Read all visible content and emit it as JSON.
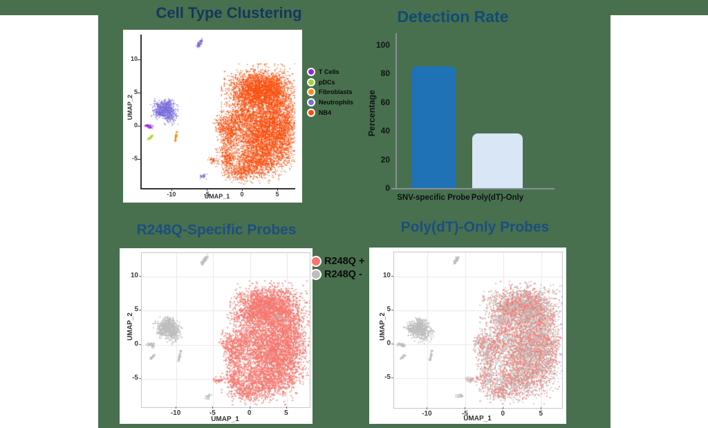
{
  "page": {
    "bg_green": "#48704E",
    "bg_white": "#FFFFFF"
  },
  "titles": {
    "cell_type": {
      "text": "Cell Type Clustering",
      "color": "#16375D"
    },
    "detection": {
      "text": "Detection Rate",
      "color": "#134A74"
    },
    "r248q": {
      "text": "R248Q-Specific Probes",
      "color": "#1C4E80"
    },
    "polydt": {
      "text": "Poly(dT)-Only Probes",
      "color": "#1C4E80"
    }
  },
  "chart_data": [
    {
      "id": "cell_type_umap",
      "type": "scatter",
      "title": "Cell Type Clustering",
      "xlabel": "UMAP_1",
      "ylabel": "UMAP_2",
      "xlim": [
        -14.4,
        7.35
      ],
      "ylim": [
        -9.4,
        13.75
      ],
      "xticks": [
        -10,
        -5,
        0,
        5
      ],
      "yticks": [
        10,
        5,
        0,
        -5
      ],
      "grid": false,
      "point_size": 1.3,
      "density": 1.6,
      "legend": [
        {
          "label": "T Cells",
          "color": "#9128D8"
        },
        {
          "label": "pDCs",
          "color": "#9FD62B"
        },
        {
          "label": "Fibroblasts",
          "color": "#FB8A10"
        },
        {
          "label": "Neutrophils",
          "color": "#7A6ED9"
        },
        {
          "label": "NB4",
          "color": "#FA4E0D"
        }
      ],
      "groups": [
        {
          "geom": "main_blob",
          "color": "#FA4E0D"
        },
        {
          "geom": "nb4_spot",
          "color": "#FA4E0D"
        },
        {
          "geom": "neutrophil_cluster",
          "color": "#7A6ED9"
        },
        {
          "geom": "neutrophil_streak",
          "color": "#7A6ED9"
        },
        {
          "geom": "neutrophil_dots",
          "color": "#7A6ED9"
        },
        {
          "geom": "tcell_cluster",
          "color": "#9128D8"
        },
        {
          "geom": "pdc_streak",
          "color": "#9FD62B"
        },
        {
          "geom": "fibro_streak",
          "color": "#FB8A10"
        },
        {
          "geom": "fibro_dot",
          "color": "#FB8A10"
        }
      ]
    },
    {
      "id": "detection_rate",
      "type": "bar",
      "title": "Detection Rate",
      "categories": [
        "SNV-specific Probe",
        "Poly(dT)-Only"
      ],
      "values": [
        85,
        38
      ],
      "bar_colors": [
        "#1F72B5",
        "#D9E6F5"
      ],
      "ylabel": "Percentage",
      "ylim": [
        0,
        100
      ],
      "yticks": [
        0,
        20,
        40,
        60,
        80,
        100
      ],
      "axis_color": "#8A9097"
    },
    {
      "id": "r248q_umap",
      "type": "scatter",
      "title": "R248Q-Specific Probes",
      "xlabel": "UMAP_1",
      "ylabel": "UMAP_2",
      "xlim": [
        -14.7,
        8.1
      ],
      "ylim": [
        -9.15,
        13.4
      ],
      "xticks": [
        -10,
        -5,
        0,
        5
      ],
      "yticks": [
        10,
        5,
        0,
        -5
      ],
      "grid": true,
      "point_size": 1.7,
      "density": 1.2,
      "legend": [
        {
          "label": "R248Q +",
          "color": "#F8766D"
        },
        {
          "label": "R248Q -",
          "color": "#BDBDBD"
        }
      ],
      "groups": [
        {
          "geom": "main_blob",
          "mix": {
            "colors": [
              "#F8766D",
              "#BDBDBD"
            ],
            "fraction": 0.92
          }
        },
        {
          "geom": "nb4_spot",
          "color": "#F8766D"
        },
        {
          "geom": "neutrophil_cluster",
          "color": "#BDBDBD"
        },
        {
          "geom": "neutrophil_streak",
          "color": "#BDBDBD"
        },
        {
          "geom": "neutrophil_dots",
          "color": "#BDBDBD"
        },
        {
          "geom": "tcell_cluster",
          "color": "#BDBDBD"
        },
        {
          "geom": "pdc_streak",
          "color": "#BDBDBD"
        },
        {
          "geom": "fibro_streak",
          "color": "#BDBDBD"
        },
        {
          "geom": "fibro_dot",
          "color": "#BDBDBD"
        }
      ]
    },
    {
      "id": "polydt_umap",
      "type": "scatter",
      "title": "Poly(dT)-Only Probes",
      "xlabel": "UMAP_1",
      "ylabel": "UMAP_2",
      "xlim": [
        -14.4,
        7.7
      ],
      "ylim": [
        -9.4,
        13.6
      ],
      "xticks": [
        -10,
        -5,
        0,
        5
      ],
      "yticks": [
        10,
        5,
        0,
        -5
      ],
      "grid": true,
      "point_size": 1.7,
      "density": 1.1,
      "legend": [],
      "groups": [
        {
          "geom": "main_blob",
          "mix": {
            "colors": [
              "#F8766D",
              "#BDBDBD"
            ],
            "fraction": 0.44
          }
        },
        {
          "geom": "nb4_spot",
          "mix": {
            "colors": [
              "#F8766D",
              "#BDBDBD"
            ],
            "fraction": 0.35
          }
        },
        {
          "geom": "neutrophil_cluster",
          "color": "#BDBDBD"
        },
        {
          "geom": "neutrophil_streak",
          "color": "#BDBDBD"
        },
        {
          "geom": "neutrophil_dots",
          "color": "#BDBDBD"
        },
        {
          "geom": "tcell_cluster",
          "color": "#BDBDBD"
        },
        {
          "geom": "pdc_streak",
          "color": "#BDBDBD"
        },
        {
          "geom": "fibro_streak",
          "color": "#BDBDBD"
        },
        {
          "geom": "fibro_dot",
          "color": "#BDBDBD"
        }
      ]
    }
  ],
  "umap_geometry": {
    "main_blob": {
      "components": [
        [
          2.5,
          6.2,
          2.0,
          1.2,
          900
        ],
        [
          4.2,
          4.2,
          1.5,
          1.4,
          650
        ],
        [
          0.8,
          4.6,
          1.5,
          1.2,
          550
        ],
        [
          3.6,
          0.8,
          1.8,
          1.7,
          800
        ],
        [
          4.6,
          -2.8,
          1.5,
          1.8,
          650
        ],
        [
          2.0,
          -1.8,
          1.7,
          1.5,
          650
        ],
        [
          1.6,
          -5.4,
          1.8,
          1.3,
          700
        ],
        [
          -0.2,
          1.4,
          1.1,
          1.1,
          260
        ],
        [
          -1.7,
          -0.2,
          0.8,
          0.9,
          160
        ],
        [
          -2.1,
          -2.1,
          0.7,
          1.0,
          150
        ],
        [
          -2.3,
          -4.9,
          0.6,
          0.8,
          130
        ],
        [
          -0.6,
          -7.0,
          1.0,
          0.6,
          150
        ],
        [
          5.8,
          0.5,
          0.8,
          1.6,
          220
        ],
        [
          -3.0,
          0.3,
          0.5,
          0.7,
          80
        ]
      ]
    },
    "neutrophil_cluster": {
      "components": [
        [
          -11.2,
          2.5,
          0.75,
          0.6,
          300
        ],
        [
          -10.4,
          1.5,
          0.5,
          0.55,
          110
        ],
        [
          -11.9,
          1.9,
          0.35,
          0.4,
          50
        ],
        [
          -10.9,
          3.3,
          0.4,
          0.3,
          50
        ]
      ]
    },
    "neutrophil_streak": {
      "line": [
        -6.5,
        11.9,
        -5.9,
        12.9
      ],
      "n": 55,
      "jitter": 0.13
    },
    "neutrophil_dots": {
      "components": [
        [
          -5.7,
          -7.6,
          0.22,
          0.18,
          22
        ]
      ]
    },
    "tcell_cluster": {
      "components": [
        [
          -13.5,
          0.0,
          0.28,
          0.13,
          30
        ],
        [
          -13.2,
          -0.25,
          0.15,
          0.1,
          10
        ]
      ]
    },
    "pdc_streak": {
      "line": [
        -13.5,
        -2.1,
        -12.9,
        -1.5
      ],
      "n": 26,
      "jitter": 0.08
    },
    "fibro_streak": {
      "line": [
        -9.7,
        -2.4,
        -9.5,
        -1.3
      ],
      "n": 30,
      "jitter": 0.07
    },
    "fibro_dot": {
      "components": [
        [
          -9.4,
          -0.95,
          0.09,
          0.08,
          6
        ]
      ]
    },
    "nb4_spot": {
      "components": [
        [
          -4.3,
          -5.2,
          0.28,
          0.22,
          28
        ]
      ]
    }
  }
}
